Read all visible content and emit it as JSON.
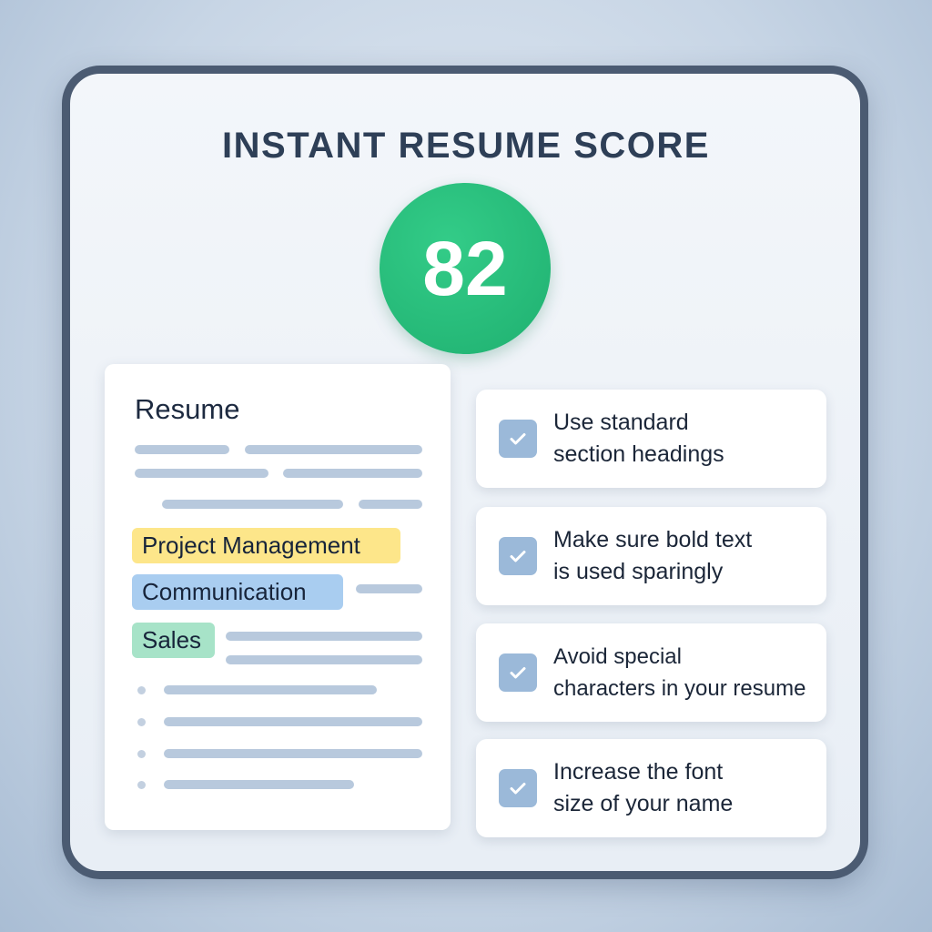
{
  "title": "INSTANT RESUME SCORE",
  "score": "82",
  "colors": {
    "score": "#22bb77",
    "frame": "#4b5b72",
    "checkbox": "#9bb9d9"
  },
  "resume": {
    "heading": "Resume",
    "tags": [
      {
        "label": "Project Management",
        "color": "#fde68a"
      },
      {
        "label": "Communication",
        "color": "#a9cdf0"
      },
      {
        "label": "Sales",
        "color": "#a7e3c8"
      }
    ]
  },
  "checklist": [
    {
      "line1": "Use standard",
      "line2": "section headings",
      "checked": true,
      "icon": "check-icon"
    },
    {
      "line1": "Make sure bold text",
      "line2": "is used sparingly",
      "checked": true,
      "icon": "check-icon"
    },
    {
      "line1": "Avoid special",
      "line2": "characters in your resume",
      "checked": true,
      "icon": "check-icon"
    },
    {
      "line1": "Increase the font",
      "line2": "size of your name",
      "checked": true,
      "icon": "check-icon"
    }
  ]
}
